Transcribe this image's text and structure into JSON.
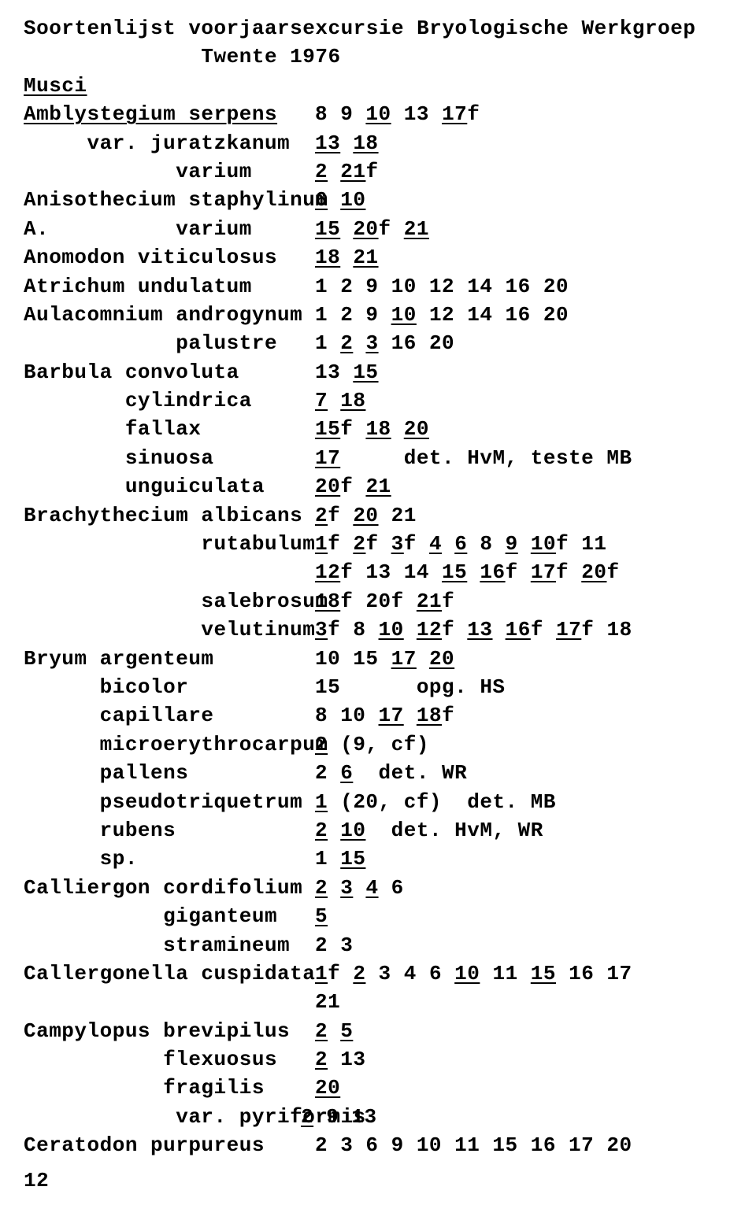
{
  "title_l1": "Soortenlijst voorjaarsexcursie Bryologische Werkgroep",
  "title_l2": "              Twente 1976",
  "heading_musci": "Musci",
  "page_number": "12",
  "rows": [
    {
      "left": [
        [
          "Amblystegium serpens",
          1
        ]
      ],
      "right": [
        [
          "8 9 ",
          0
        ],
        [
          "10",
          1
        ],
        [
          " 13 ",
          0
        ],
        [
          "17",
          1
        ],
        [
          "f",
          0
        ]
      ]
    },
    {
      "left": [
        [
          "     var. juratzkanum",
          0
        ]
      ],
      "right": [
        [
          "13",
          1
        ],
        [
          " ",
          0
        ],
        [
          "18",
          1
        ]
      ]
    },
    {
      "left": [
        [
          "            varium",
          0
        ]
      ],
      "right": [
        [
          "2",
          1
        ],
        [
          " ",
          0
        ],
        [
          "21",
          1
        ],
        [
          "f",
          0
        ]
      ]
    },
    {
      "left": [
        [
          "Anisothecium staphylinum",
          0
        ]
      ],
      "right": [
        [
          "6",
          1
        ],
        [
          " ",
          0
        ],
        [
          "10",
          1
        ]
      ]
    },
    {
      "left": [
        [
          "A.          varium",
          0
        ]
      ],
      "right": [
        [
          "15",
          1
        ],
        [
          " ",
          0
        ],
        [
          "20",
          1
        ],
        [
          "f ",
          0
        ],
        [
          "21",
          1
        ]
      ]
    },
    {
      "left": [
        [
          "Anomodon viticulosus",
          0
        ]
      ],
      "right": [
        [
          "18",
          1
        ],
        [
          " ",
          0
        ],
        [
          "21",
          1
        ]
      ]
    },
    {
      "left": [
        [
          "Atrichum undulatum",
          0
        ]
      ],
      "right": [
        [
          "1 2 9 10 12 14 16 20",
          0
        ]
      ]
    },
    {
      "left": [
        [
          "Aulacomnium androgynum",
          0
        ]
      ],
      "right": [
        [
          "1 2 9 ",
          0
        ],
        [
          "10",
          1
        ],
        [
          " 12 14 16 20",
          0
        ]
      ]
    },
    {
      "left": [
        [
          "            palustre",
          0
        ]
      ],
      "right": [
        [
          "1 ",
          0
        ],
        [
          "2",
          1
        ],
        [
          " ",
          0
        ],
        [
          "3",
          1
        ],
        [
          " 16 20",
          0
        ]
      ]
    },
    {
      "left": [
        [
          "Barbula convoluta",
          0
        ]
      ],
      "right": [
        [
          "13 ",
          0
        ],
        [
          "15",
          1
        ]
      ]
    },
    {
      "left": [
        [
          "        cylindrica",
          0
        ]
      ],
      "right": [
        [
          "7",
          1
        ],
        [
          " ",
          0
        ],
        [
          "18",
          1
        ]
      ]
    },
    {
      "left": [
        [
          "        fallax",
          0
        ]
      ],
      "right": [
        [
          "15",
          1
        ],
        [
          "f ",
          0
        ],
        [
          "18",
          1
        ],
        [
          " ",
          0
        ],
        [
          "20",
          1
        ]
      ]
    },
    {
      "left": [
        [
          "        sinuosa",
          0
        ]
      ],
      "right": [
        [
          "17",
          1
        ],
        [
          "     det. HvM, teste MB",
          0
        ]
      ]
    },
    {
      "left": [
        [
          "        unguiculata",
          0
        ]
      ],
      "right": [
        [
          "20",
          1
        ],
        [
          "f ",
          0
        ],
        [
          "21",
          1
        ]
      ]
    },
    {
      "left": [
        [
          "Brachythecium albicans",
          0
        ]
      ],
      "right": [
        [
          "2",
          1
        ],
        [
          "f ",
          0
        ],
        [
          "20",
          1
        ],
        [
          " 21",
          0
        ]
      ]
    },
    {
      "left": [
        [
          "              rutabulum",
          0
        ]
      ],
      "right": [
        [
          "1",
          1
        ],
        [
          "f ",
          0
        ],
        [
          "2",
          1
        ],
        [
          "f ",
          0
        ],
        [
          "3",
          1
        ],
        [
          "f ",
          0
        ],
        [
          "4",
          1
        ],
        [
          " ",
          0
        ],
        [
          "6",
          1
        ],
        [
          " 8 ",
          0
        ],
        [
          "9",
          1
        ],
        [
          " ",
          0
        ],
        [
          "10",
          1
        ],
        [
          "f 11",
          0
        ]
      ]
    },
    {
      "left": [
        [
          "",
          0
        ]
      ],
      "right": [
        [
          "12",
          1
        ],
        [
          "f 13 14 ",
          0
        ],
        [
          "15",
          1
        ],
        [
          " ",
          0
        ],
        [
          "16",
          1
        ],
        [
          "f ",
          0
        ],
        [
          "17",
          1
        ],
        [
          "f ",
          0
        ],
        [
          "20",
          1
        ],
        [
          "f",
          0
        ]
      ]
    },
    {
      "left": [
        [
          "              salebrosum",
          0
        ]
      ],
      "right": [
        [
          "18",
          1
        ],
        [
          "f 20f ",
          0
        ],
        [
          "21",
          1
        ],
        [
          "f",
          0
        ]
      ]
    },
    {
      "left": [
        [
          "              velutinum",
          0
        ]
      ],
      "right": [
        [
          "3",
          1
        ],
        [
          "f 8 ",
          0
        ],
        [
          "10",
          1
        ],
        [
          " ",
          0
        ],
        [
          "12",
          1
        ],
        [
          "f ",
          0
        ],
        [
          "13",
          1
        ],
        [
          " ",
          0
        ],
        [
          "16",
          1
        ],
        [
          "f ",
          0
        ],
        [
          "17",
          1
        ],
        [
          "f 18",
          0
        ]
      ]
    },
    {
      "left": [
        [
          "Bryum argenteum",
          0
        ]
      ],
      "right": [
        [
          "10 15 ",
          0
        ],
        [
          "17",
          1
        ],
        [
          " ",
          0
        ],
        [
          "20",
          1
        ]
      ]
    },
    {
      "left": [
        [
          "      bicolor",
          0
        ]
      ],
      "right": [
        [
          "15      opg. HS",
          0
        ]
      ]
    },
    {
      "left": [
        [
          "      capillare",
          0
        ]
      ],
      "right": [
        [
          "8 10 ",
          0
        ],
        [
          "17",
          1
        ],
        [
          " ",
          0
        ],
        [
          "18",
          1
        ],
        [
          "f",
          0
        ]
      ]
    },
    {
      "left": [
        [
          "      microerythrocarpum",
          0
        ]
      ],
      "right": [
        [
          "2",
          1
        ],
        [
          " (9, cf)",
          0
        ]
      ]
    },
    {
      "left": [
        [
          "      pallens",
          0
        ]
      ],
      "right": [
        [
          "2 ",
          0
        ],
        [
          "6",
          1
        ],
        [
          "  det. WR",
          0
        ]
      ]
    },
    {
      "left": [
        [
          "      pseudotriquetrum",
          0
        ]
      ],
      "right": [
        [
          "1",
          1
        ],
        [
          " (20, cf)  det. MB",
          0
        ]
      ]
    },
    {
      "left": [
        [
          "      rubens",
          0
        ]
      ],
      "right": [
        [
          "2",
          1
        ],
        [
          " ",
          0
        ],
        [
          "10",
          1
        ],
        [
          "  det. HvM, WR",
          0
        ]
      ]
    },
    {
      "left": [
        [
          "      sp.",
          0
        ]
      ],
      "right": [
        [
          "1 ",
          0
        ],
        [
          "15",
          1
        ]
      ]
    },
    {
      "left": [
        [
          "Calliergon cordifolium",
          0
        ]
      ],
      "right": [
        [
          "2",
          1
        ],
        [
          " ",
          0
        ],
        [
          "3",
          1
        ],
        [
          " ",
          0
        ],
        [
          "4",
          1
        ],
        [
          " 6",
          0
        ]
      ]
    },
    {
      "left": [
        [
          "           giganteum",
          0
        ]
      ],
      "right": [
        [
          "5",
          1
        ]
      ]
    },
    {
      "left": [
        [
          "           stramineum",
          0
        ]
      ],
      "right": [
        [
          "2 3",
          0
        ]
      ]
    },
    {
      "left": [
        [
          "Callergonella cuspidata",
          0
        ]
      ],
      "right": [
        [
          "1",
          1
        ],
        [
          "f ",
          0
        ],
        [
          "2",
          1
        ],
        [
          " 3 4 6 ",
          0
        ],
        [
          "10",
          1
        ],
        [
          " 11 ",
          0
        ],
        [
          "15",
          1
        ],
        [
          " 16 17",
          0
        ]
      ]
    },
    {
      "left": [
        [
          "",
          0
        ]
      ],
      "right": [
        [
          "21",
          0
        ]
      ]
    },
    {
      "left": [
        [
          "Campylopus brevipilus",
          0
        ]
      ],
      "right": [
        [
          "2",
          1
        ],
        [
          " ",
          0
        ],
        [
          "5",
          1
        ]
      ]
    },
    {
      "left": [
        [
          "           flexuosus",
          0
        ]
      ],
      "right": [
        [
          "2",
          1
        ],
        [
          " 13",
          0
        ]
      ]
    },
    {
      "left": [
        [
          "           fragilis",
          0
        ]
      ],
      "right": [
        [
          "20",
          1
        ]
      ]
    },
    {
      "left": [
        [
          "",
          0
        ]
      ],
      "right": [
        [
          "",
          0
        ]
      ],
      "special": "pyriformis"
    },
    {
      "left": [
        [
          "Ceratodon purpureus",
          0
        ]
      ],
      "right": [
        [
          "2 3 6 9 10 11 15 16 17 20",
          0
        ]
      ]
    }
  ]
}
